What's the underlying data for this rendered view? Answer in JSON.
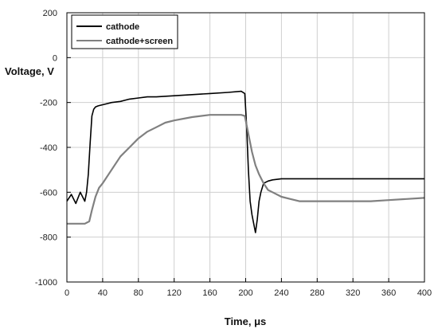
{
  "chart_data": {
    "type": "line",
    "title": "",
    "xlabel": "Time, μs",
    "ylabel": "Voltage, V",
    "xlim": [
      0,
      400
    ],
    "ylim": [
      -1000,
      200
    ],
    "xticks": [
      0,
      40,
      80,
      120,
      160,
      200,
      240,
      280,
      320,
      360,
      400
    ],
    "yticks": [
      200,
      0,
      -200,
      -400,
      -600,
      -800,
      -1000
    ],
    "grid": true,
    "legend": "top-left",
    "series": [
      {
        "name": "cathode",
        "color": "#000000",
        "x": [
          0,
          5,
          10,
          15,
          20,
          22,
          24,
          26,
          28,
          30,
          32,
          35,
          40,
          45,
          50,
          60,
          70,
          80,
          90,
          100,
          120,
          140,
          160,
          180,
          195,
          199,
          201,
          203,
          205,
          207,
          209,
          211,
          213,
          215,
          217,
          220,
          225,
          230,
          240,
          260,
          280,
          300,
          320,
          340,
          360,
          380,
          400
        ],
        "y": [
          -640,
          -610,
          -650,
          -600,
          -640,
          -600,
          -520,
          -380,
          -260,
          -230,
          -220,
          -215,
          -210,
          -205,
          -200,
          -195,
          -185,
          -180,
          -175,
          -175,
          -170,
          -165,
          -160,
          -155,
          -150,
          -160,
          -300,
          -500,
          -640,
          -700,
          -740,
          -780,
          -720,
          -640,
          -600,
          -560,
          -550,
          -545,
          -540,
          -540,
          -540,
          -540,
          -540,
          -540,
          -540,
          -540,
          -540
        ]
      },
      {
        "name": "cathode+screen",
        "color": "#808080",
        "x": [
          0,
          10,
          20,
          25,
          28,
          32,
          36,
          40,
          50,
          60,
          70,
          80,
          90,
          100,
          110,
          120,
          140,
          160,
          180,
          195,
          199,
          203,
          207,
          211,
          215,
          220,
          225,
          230,
          240,
          250,
          260,
          280,
          300,
          320,
          340,
          360,
          380,
          400
        ],
        "y": [
          -740,
          -740,
          -740,
          -730,
          -680,
          -620,
          -580,
          -560,
          -500,
          -440,
          -400,
          -360,
          -330,
          -310,
          -290,
          -280,
          -265,
          -255,
          -255,
          -255,
          -260,
          -340,
          -420,
          -480,
          -520,
          -560,
          -590,
          -600,
          -620,
          -630,
          -640,
          -640,
          -640,
          -640,
          -640,
          -635,
          -630,
          -625
        ]
      }
    ]
  }
}
